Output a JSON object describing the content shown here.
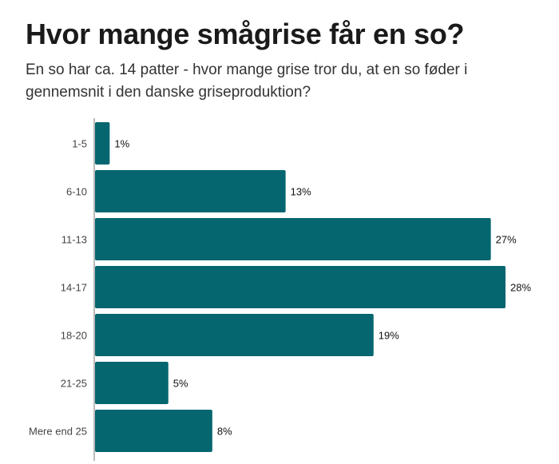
{
  "chart_data": {
    "type": "bar",
    "orientation": "horizontal",
    "title": "Hvor mange smågrise får en so?",
    "subtitle": "En so har ca. 14 patter - hvor mange grise tror du, at en so føder i gennemsnit i den danske griseproduktion?",
    "categories": [
      "1-5",
      "6-10",
      "11-13",
      "14-17",
      "18-20",
      "21-25",
      "Mere end 25"
    ],
    "values": [
      1,
      13,
      27,
      28,
      19,
      5,
      8
    ],
    "value_labels": [
      "1%",
      "13%",
      "27%",
      "28%",
      "19%",
      "5%",
      "8%"
    ],
    "unit": "%",
    "xlim": [
      0,
      28
    ],
    "grid": false,
    "bar_color": "#05666f"
  }
}
